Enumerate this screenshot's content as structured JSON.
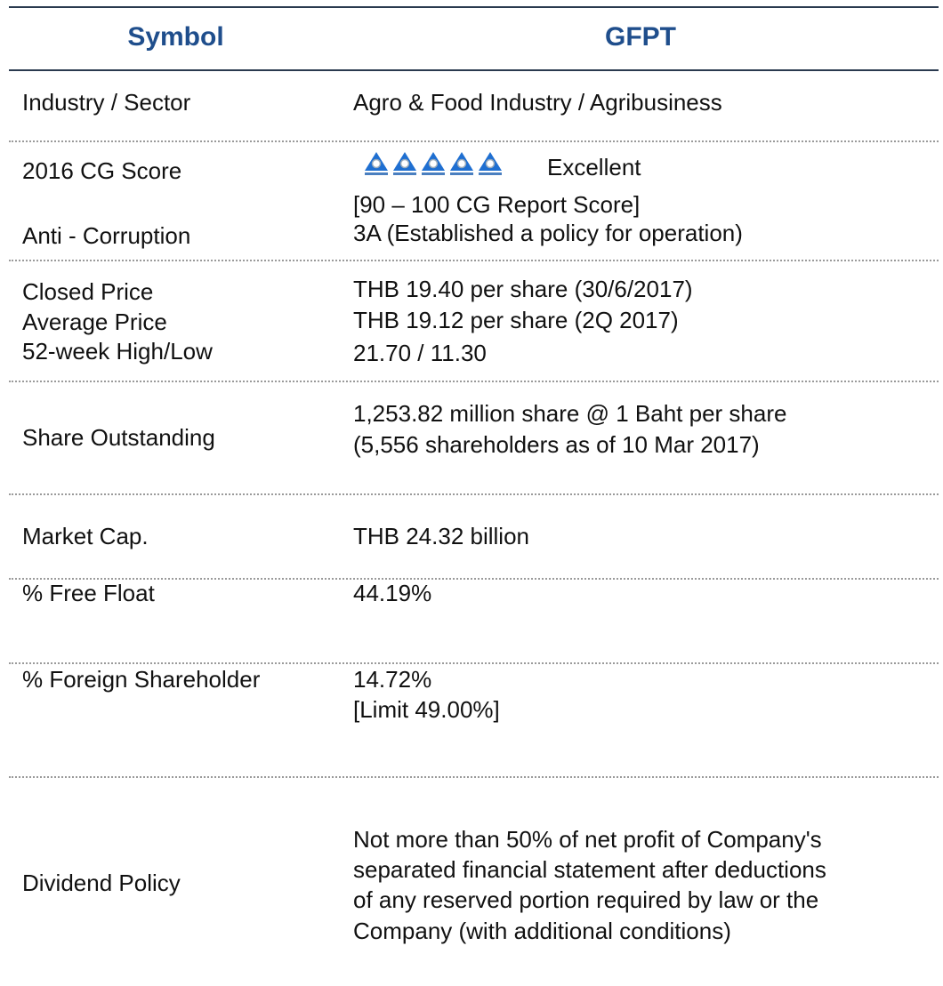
{
  "header": {
    "left": "Symbol",
    "right": "GFPT"
  },
  "rows": [
    {
      "label": [
        "Industry / Sector"
      ],
      "value": [
        "Agro & Food Industry / Agribusiness"
      ]
    },
    {
      "label": [
        "2016 CG Score",
        "Anti - Corruption"
      ],
      "value": [
        "Excellent",
        "[90 – 100 CG Report Score]",
        "3A (Established a policy for operation)"
      ]
    },
    {
      "label": [
        "Closed Price",
        "Average Price",
        "52-week High/Low"
      ],
      "value": [
        "THB 19.40 per share (30/6/2017)",
        "THB 19.12 per share (2Q 2017)",
        "21.70 / 11.30"
      ]
    },
    {
      "label": [
        "Share Outstanding"
      ],
      "value": [
        "1,253.82 million share @ 1 Baht per share",
        "(5,556 shareholders as of 10 Mar 2017)"
      ]
    },
    {
      "label": [
        "Market Cap."
      ],
      "value": [
        "THB 24.32 billion"
      ]
    },
    {
      "label": [
        "% Free Float"
      ],
      "value": [
        "44.19%"
      ]
    },
    {
      "label": [
        "% Foreign Shareholder"
      ],
      "value": [
        "14.72%",
        "[Limit 49.00%]"
      ]
    },
    {
      "label": [
        "Dividend Policy"
      ],
      "value": [
        "Not more than 50% of net profit of Company's",
        "separated financial statement after deductions",
        "of any reserved portion required by law or the",
        "Company (with additional conditions)"
      ]
    }
  ]
}
